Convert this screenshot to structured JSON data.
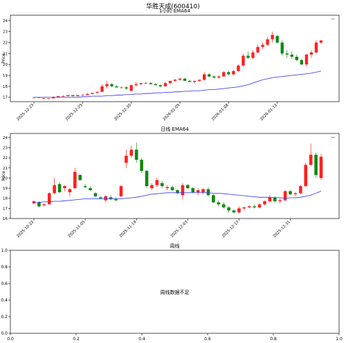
{
  "title": "华胜天成(600410)",
  "colors": {
    "up": "#ff2020",
    "down": "#118811",
    "ema": "#4444ee",
    "axis": "#000000"
  },
  "chart_data": [
    {
      "type": "candlestick",
      "title": "1小时 EMA64",
      "ylabel": "Price",
      "ylim": [
        16.6,
        24.5
      ],
      "yticks": [
        17,
        18,
        19,
        20,
        21,
        22,
        23,
        24
      ],
      "legend": "—",
      "x_tick_labels": [
        "2025-12-23",
        "2025-12-25",
        "2025-12-30",
        "2026-01-05",
        "2026-01-08",
        "2026-01-12"
      ],
      "x_tick_index": [
        0,
        10,
        20,
        30,
        40,
        50
      ],
      "candles": [
        [
          17.0,
          17.0,
          16.9,
          17.0
        ],
        [
          17.0,
          17.0,
          16.9,
          17.0
        ],
        [
          16.9,
          17.0,
          16.9,
          16.9
        ],
        [
          16.9,
          16.9,
          16.8,
          16.9
        ],
        [
          16.9,
          17.1,
          16.9,
          17.0
        ],
        [
          17.0,
          17.1,
          17.0,
          17.1
        ],
        [
          17.1,
          17.2,
          17.1,
          17.1
        ],
        [
          17.1,
          17.2,
          17.1,
          17.2
        ],
        [
          17.2,
          17.2,
          17.1,
          17.1
        ],
        [
          17.1,
          17.2,
          17.1,
          17.2
        ],
        [
          17.2,
          17.3,
          17.2,
          17.2
        ],
        [
          17.2,
          17.4,
          17.2,
          17.3
        ],
        [
          17.3,
          17.4,
          17.3,
          17.4
        ],
        [
          17.4,
          17.5,
          17.4,
          17.5
        ],
        [
          17.5,
          18.2,
          17.5,
          18.0
        ],
        [
          18.0,
          18.5,
          17.8,
          18.2
        ],
        [
          18.2,
          18.3,
          17.9,
          18.0
        ],
        [
          18.0,
          18.1,
          17.9,
          17.9
        ],
        [
          17.9,
          18.0,
          17.8,
          17.9
        ],
        [
          17.9,
          18.0,
          17.7,
          17.8
        ],
        [
          17.6,
          18.2,
          17.5,
          18.1
        ],
        [
          18.1,
          18.4,
          18.0,
          18.2
        ],
        [
          18.2,
          18.3,
          18.1,
          18.3
        ],
        [
          18.3,
          18.4,
          18.2,
          18.3
        ],
        [
          18.3,
          18.4,
          18.2,
          18.2
        ],
        [
          18.2,
          18.3,
          18.1,
          18.1
        ],
        [
          18.1,
          18.2,
          17.9,
          18.0
        ],
        [
          18.0,
          18.4,
          18.0,
          18.3
        ],
        [
          18.3,
          18.5,
          18.2,
          18.5
        ],
        [
          18.5,
          18.7,
          18.4,
          18.6
        ],
        [
          18.6,
          18.8,
          18.5,
          18.7
        ],
        [
          18.7,
          18.8,
          18.5,
          18.5
        ],
        [
          18.5,
          18.6,
          18.4,
          18.4
        ],
        [
          18.4,
          18.5,
          18.3,
          18.5
        ],
        [
          18.5,
          18.6,
          18.4,
          18.6
        ],
        [
          18.6,
          19.3,
          18.5,
          19.1
        ],
        [
          19.1,
          19.2,
          18.8,
          18.9
        ],
        [
          18.9,
          19.0,
          18.7,
          18.8
        ],
        [
          18.8,
          19.0,
          18.7,
          18.9
        ],
        [
          18.9,
          19.4,
          18.9,
          19.3
        ],
        [
          19.3,
          19.4,
          19.0,
          19.1
        ],
        [
          19.1,
          19.5,
          19.0,
          19.4
        ],
        [
          19.4,
          20.0,
          19.3,
          19.9
        ],
        [
          19.9,
          21.0,
          19.8,
          20.8
        ],
        [
          20.8,
          21.2,
          20.5,
          20.6
        ],
        [
          20.6,
          21.3,
          20.5,
          21.1
        ],
        [
          21.1,
          21.8,
          21.0,
          21.6
        ],
        [
          21.6,
          22.0,
          21.4,
          21.8
        ],
        [
          21.8,
          22.5,
          21.7,
          22.3
        ],
        [
          22.3,
          23.0,
          22.0,
          22.7
        ],
        [
          22.6,
          22.7,
          21.9,
          22.0
        ],
        [
          22.0,
          22.2,
          20.8,
          21.0
        ],
        [
          21.0,
          21.3,
          20.6,
          20.9
        ],
        [
          20.9,
          21.2,
          20.5,
          20.7
        ],
        [
          20.7,
          20.9,
          20.3,
          20.4
        ],
        [
          20.4,
          20.5,
          19.9,
          20.0
        ],
        [
          20.0,
          21.0,
          19.8,
          20.9
        ],
        [
          20.9,
          21.3,
          20.6,
          21.1
        ],
        [
          21.1,
          22.2,
          21.0,
          22.0
        ],
        [
          22.0,
          22.2,
          21.9,
          22.2
        ]
      ],
      "ema": [
        17.0,
        17.0,
        17.0,
        17.0,
        17.0,
        17.0,
        17.0,
        17.0,
        17.0,
        17.0,
        17.05,
        17.05,
        17.1,
        17.1,
        17.1,
        17.15,
        17.15,
        17.2,
        17.2,
        17.25,
        17.25,
        17.3,
        17.3,
        17.35,
        17.35,
        17.4,
        17.4,
        17.45,
        17.45,
        17.5,
        17.5,
        17.55,
        17.55,
        17.6,
        17.6,
        17.65,
        17.7,
        17.7,
        17.75,
        17.8,
        17.85,
        17.9,
        17.95,
        18.05,
        18.15,
        18.3,
        18.45,
        18.6,
        18.7,
        18.8,
        18.85,
        18.9,
        18.95,
        19.0,
        19.05,
        19.1,
        19.15,
        19.2,
        19.3,
        19.4
      ]
    },
    {
      "type": "candlestick",
      "title": "日线 EMA64",
      "ylabel": "Price",
      "ylim": [
        16.0,
        24.4
      ],
      "yticks": [
        16,
        17,
        18,
        19,
        20,
        21,
        22,
        23,
        24
      ],
      "legend": "—",
      "x_tick_labels": [
        "2025-10-22",
        "2025-11-05",
        "2025-11-19",
        "2025-12-03",
        "2025-12-17",
        "2025-12-31"
      ],
      "x_tick_index": [
        0,
        10,
        20,
        30,
        40,
        50
      ],
      "candles": [
        [
          17.5,
          17.8,
          17.4,
          17.7
        ],
        [
          17.6,
          17.7,
          17.1,
          17.2
        ],
        [
          17.3,
          17.5,
          17.2,
          17.4
        ],
        [
          17.4,
          18.6,
          17.4,
          18.5
        ],
        [
          18.5,
          20.0,
          18.4,
          19.3
        ],
        [
          19.4,
          19.6,
          18.5,
          18.6
        ],
        [
          19.0,
          19.3,
          18.7,
          19.2
        ],
        [
          18.6,
          19.0,
          18.2,
          18.9
        ],
        [
          19.0,
          21.0,
          18.9,
          20.6
        ],
        [
          20.3,
          20.4,
          19.7,
          19.8
        ],
        [
          19.2,
          19.4,
          19.0,
          19.1
        ],
        [
          19.0,
          19.2,
          18.7,
          18.8
        ],
        [
          18.5,
          18.6,
          18.1,
          18.2
        ],
        [
          18.1,
          18.2,
          17.9,
          18.0
        ],
        [
          17.8,
          18.3,
          17.6,
          18.2
        ],
        [
          18.1,
          18.3,
          17.8,
          17.9
        ],
        [
          17.9,
          18.1,
          17.7,
          17.8
        ],
        [
          18.2,
          19.3,
          18.1,
          19.2
        ],
        [
          21.5,
          22.8,
          21.0,
          22.2
        ],
        [
          22.2,
          23.2,
          22.0,
          22.8
        ],
        [
          22.8,
          23.5,
          21.5,
          21.8
        ],
        [
          21.8,
          22.0,
          20.5,
          20.7
        ],
        [
          20.7,
          20.8,
          19.0,
          19.2
        ],
        [
          19.0,
          19.5,
          18.8,
          19.3
        ],
        [
          19.3,
          20.0,
          19.1,
          19.8
        ],
        [
          19.5,
          19.7,
          19.0,
          19.2
        ],
        [
          19.0,
          19.3,
          18.8,
          19.1
        ],
        [
          19.1,
          19.3,
          18.7,
          18.8
        ],
        [
          18.8,
          18.9,
          18.4,
          18.5
        ],
        [
          18.3,
          19.5,
          17.9,
          19.3
        ],
        [
          19.3,
          19.4,
          18.9,
          19.0
        ],
        [
          19.0,
          19.1,
          18.5,
          18.6
        ],
        [
          18.6,
          19.0,
          18.3,
          18.8
        ],
        [
          18.6,
          19.0,
          18.4,
          18.9
        ],
        [
          18.9,
          19.1,
          18.2,
          18.3
        ],
        [
          18.3,
          18.4,
          17.5,
          17.6
        ],
        [
          17.6,
          17.8,
          17.2,
          17.4
        ],
        [
          17.4,
          17.6,
          17.0,
          17.1
        ],
        [
          17.1,
          17.2,
          16.6,
          16.8
        ],
        [
          16.8,
          16.9,
          16.5,
          16.6
        ],
        [
          16.6,
          17.2,
          16.5,
          17.0
        ],
        [
          17.0,
          17.2,
          16.8,
          17.1
        ],
        [
          17.1,
          17.3,
          17.0,
          17.2
        ],
        [
          17.2,
          17.4,
          17.0,
          17.1
        ],
        [
          17.1,
          17.5,
          17.0,
          17.4
        ],
        [
          17.4,
          17.8,
          17.3,
          17.7
        ],
        [
          17.7,
          18.3,
          17.6,
          18.1
        ],
        [
          18.1,
          18.2,
          17.6,
          17.7
        ],
        [
          17.7,
          18.0,
          17.5,
          17.8
        ],
        [
          17.8,
          18.8,
          17.7,
          18.7
        ],
        [
          18.7,
          18.8,
          18.3,
          18.4
        ],
        [
          18.4,
          18.6,
          18.2,
          18.5
        ],
        [
          18.5,
          19.3,
          18.4,
          19.2
        ],
        [
          19.2,
          21.5,
          19.1,
          21.3
        ],
        [
          21.3,
          23.4,
          21.2,
          22.3
        ],
        [
          22.3,
          22.5,
          20.0,
          20.3
        ],
        [
          20.0,
          22.4,
          19.8,
          22.1
        ]
      ],
      "ema": [
        17.55,
        17.6,
        17.65,
        17.65,
        17.7,
        17.7,
        17.75,
        17.8,
        17.85,
        17.9,
        17.95,
        17.95,
        17.95,
        17.95,
        17.95,
        17.95,
        17.95,
        17.95,
        18.0,
        18.05,
        18.1,
        18.2,
        18.3,
        18.4,
        18.45,
        18.5,
        18.55,
        18.55,
        18.55,
        18.55,
        18.55,
        18.55,
        18.55,
        18.55,
        18.55,
        18.5,
        18.5,
        18.45,
        18.4,
        18.35,
        18.3,
        18.25,
        18.2,
        18.15,
        18.1,
        18.1,
        18.1,
        18.05,
        18.05,
        18.0,
        18.05,
        18.05,
        18.1,
        18.2,
        18.3,
        18.5,
        18.7
      ]
    },
    {
      "type": "empty",
      "title": "周线",
      "message": "周线数据不足",
      "xlim": [
        0.0,
        1.0
      ],
      "ylim": [
        0.0,
        1.0
      ],
      "xticks": [
        "0.0",
        "0.2",
        "0.4",
        "0.6",
        "0.8",
        "1.0"
      ]
    }
  ]
}
